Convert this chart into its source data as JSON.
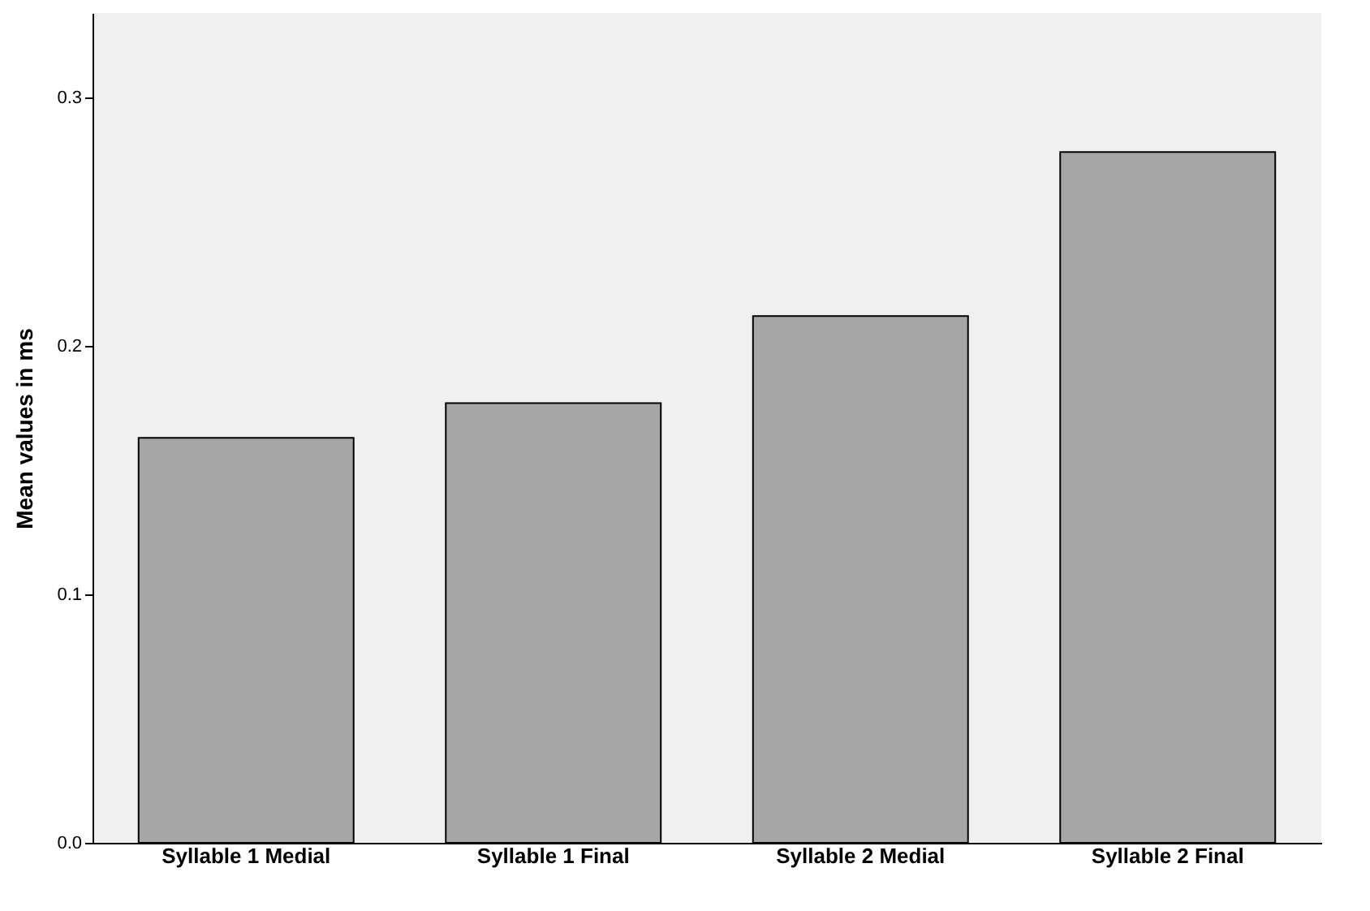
{
  "chart_data": {
    "type": "bar",
    "ylabel": "Mean values in ms",
    "categories": [
      "Syllable 1 Medial",
      "Syllable 1 Final",
      "Syllable 2 Medial",
      "Syllable 2 Final"
    ],
    "values": [
      0.163,
      0.177,
      0.212,
      0.278
    ],
    "color": "#a6a6a6",
    "ylim": [
      0,
      0.334
    ],
    "yticks": [
      {
        "value": 0,
        "label": "0.0"
      },
      {
        "value": 0.1,
        "label": "0.1"
      },
      {
        "value": 0.2,
        "label": "0.2"
      },
      {
        "value": 0.3,
        "label": "0.3"
      }
    ],
    "grid": false
  }
}
